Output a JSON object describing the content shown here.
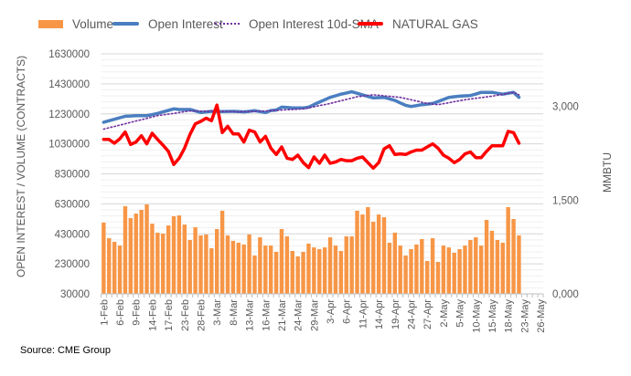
{
  "chart_data": {
    "type": "bar+line",
    "title": "",
    "ylabel": "OPEN INTEREST / VOLUME (CONTRACTS)",
    "y2label": "MMBTU",
    "ylim": [
      30000,
      1630000
    ],
    "y2lim": [
      0,
      3.84
    ],
    "y_ticks": [
      "30000",
      "230000",
      "430000",
      "630000",
      "830000",
      "1030000",
      "1230000",
      "1430000",
      "1630000"
    ],
    "y2_ticks": [
      "0,000",
      "1,500",
      "3,000"
    ],
    "x_tick_labels": [
      "1-Feb",
      "6-Feb",
      "9-Feb",
      "14-Feb",
      "17-Feb",
      "23-Feb",
      "28-Feb",
      "3-Mar",
      "8-Mar",
      "13-Mar",
      "16-Mar",
      "21-Mar",
      "24-Mar",
      "29-Mar",
      "3-Apr",
      "6-Apr",
      "11-Apr",
      "14-Apr",
      "19-Apr",
      "24-Apr",
      "27-Apr",
      "2-May",
      "5-May",
      "10-May",
      "15-May",
      "18-May",
      "23-May",
      "26-May"
    ],
    "grid": true,
    "legend_position": "top",
    "series": [
      {
        "name": "Volume",
        "type": "bar",
        "axis": "left",
        "color": "#F79646",
        "values": [
          505000,
          401000,
          377000,
          352000,
          614000,
          535000,
          565000,
          590000,
          626000,
          498000,
          438000,
          432000,
          486000,
          547000,
          553000,
          492000,
          389000,
          474000,
          420000,
          426000,
          334000,
          462000,
          584000,
          420000,
          383000,
          371000,
          359000,
          426000,
          286000,
          407000,
          352000,
          352000,
          310000,
          462000,
          413000,
          316000,
          280000,
          310000,
          365000,
          340000,
          328000,
          340000,
          407000,
          352000,
          316000,
          413000,
          413000,
          584000,
          559000,
          608000,
          511000,
          559000,
          541000,
          371000,
          438000,
          352000,
          286000,
          328000,
          359000,
          395000,
          249000,
          401000,
          243000,
          352000,
          340000,
          304000,
          328000,
          352000,
          389000,
          407000,
          352000,
          523000,
          450000,
          389000,
          371000,
          608000,
          529000,
          420000
        ]
      },
      {
        "name": "Open Interest",
        "type": "line",
        "axis": "left",
        "color": "#4A7EC0",
        "values": [
          1174000,
          1184000,
          1194000,
          1204000,
          1214000,
          1216000,
          1218000,
          1218000,
          1218000,
          1225000,
          1233000,
          1243000,
          1253000,
          1263000,
          1259000,
          1259000,
          1259000,
          1249000,
          1239000,
          1243000,
          1247000,
          1246000,
          1245000,
          1246000,
          1247000,
          1245000,
          1243000,
          1247000,
          1251000,
          1245000,
          1239000,
          1252000,
          1255000,
          1275000,
          1272000,
          1269000,
          1269000,
          1269000,
          1275000,
          1292000,
          1308000,
          1324000,
          1340000,
          1350000,
          1361000,
          1369000,
          1377000,
          1367000,
          1357000,
          1346000,
          1336000,
          1338000,
          1340000,
          1330000,
          1320000,
          1303000,
          1287000,
          1279000,
          1285000,
          1291000,
          1295000,
          1299000,
          1312000,
          1326000,
          1340000,
          1344000,
          1348000,
          1350000,
          1352000,
          1362000,
          1373000,
          1373000,
          1373000,
          1367000,
          1361000,
          1367000,
          1373000,
          1340000
        ]
      },
      {
        "name": "Open Interest 10d-SMA",
        "type": "line-dotted",
        "axis": "left",
        "color": "#7030A0",
        "values": [
          1128000,
          1137000,
          1146000,
          1155000,
          1164000,
          1173000,
          1182000,
          1191000,
          1200000,
          1209000,
          1218000,
          1223000,
          1228000,
          1233000,
          1239000,
          1244000,
          1249000,
          1249000,
          1248000,
          1248000,
          1247000,
          1247000,
          1246000,
          1245000,
          1244000,
          1243000,
          1244000,
          1245000,
          1246000,
          1248000,
          1249000,
          1251000,
          1253000,
          1255000,
          1257000,
          1259000,
          1261000,
          1263000,
          1270000,
          1277000,
          1285000,
          1292000,
          1299000,
          1308000,
          1317000,
          1326000,
          1335000,
          1344000,
          1348000,
          1353000,
          1357000,
          1354000,
          1350000,
          1347000,
          1343000,
          1340000,
          1332000,
          1324000,
          1316000,
          1307000,
          1299000,
          1295000,
          1291000,
          1298000,
          1304000,
          1311000,
          1318000,
          1324000,
          1329000,
          1334000,
          1338000,
          1343000,
          1348000,
          1354000,
          1360000,
          1367000,
          1373000,
          1357000
        ]
      },
      {
        "name": "NATURAL GAS",
        "type": "line",
        "axis": "right",
        "color": "#FF0000",
        "values": [
          2.47,
          2.47,
          2.41,
          2.48,
          2.59,
          2.39,
          2.43,
          2.53,
          2.4,
          2.57,
          2.47,
          2.38,
          2.28,
          2.07,
          2.17,
          2.33,
          2.55,
          2.72,
          2.76,
          2.81,
          2.77,
          3.02,
          2.58,
          2.68,
          2.56,
          2.56,
          2.43,
          2.62,
          2.59,
          2.43,
          2.52,
          2.33,
          2.23,
          2.35,
          2.17,
          2.15,
          2.22,
          2.1,
          2.02,
          2.19,
          2.09,
          2.22,
          2.09,
          2.11,
          2.15,
          2.13,
          2.13,
          2.17,
          2.19,
          2.1,
          2.01,
          2.1,
          2.32,
          2.37,
          2.23,
          2.24,
          2.23,
          2.27,
          2.3,
          2.3,
          2.35,
          2.4,
          2.33,
          2.22,
          2.17,
          2.1,
          2.15,
          2.24,
          2.27,
          2.18,
          2.18,
          2.28,
          2.37,
          2.37,
          2.37,
          2.6,
          2.58,
          2.41
        ]
      }
    ]
  },
  "source": "Source: CME Group"
}
